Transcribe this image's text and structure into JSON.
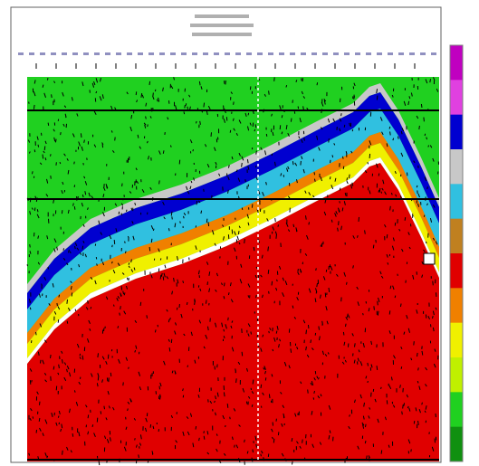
{
  "colorbar": [
    "#c000c0",
    "#e040e0",
    "#0000d0",
    "#c8c8c8",
    "#30c0e0",
    "#c08020",
    "#e00000",
    "#f08000",
    "#f0f000",
    "#c0f000",
    "#20d020",
    "#109010"
  ]
}
